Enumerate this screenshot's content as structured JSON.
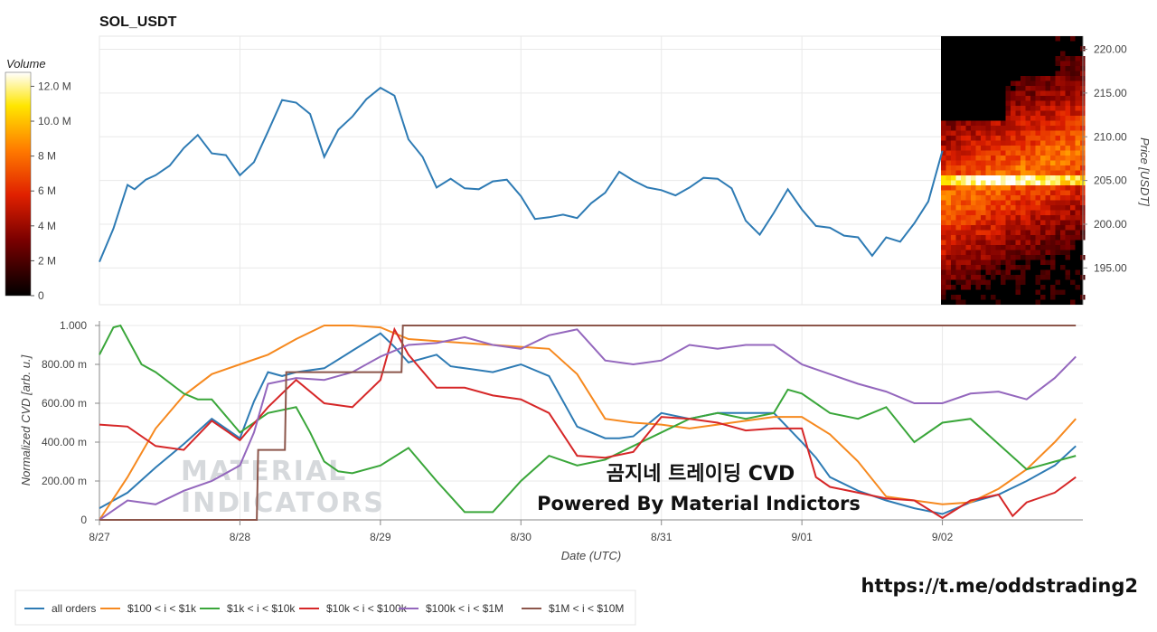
{
  "colors": {
    "all_orders": "#2e7bb4",
    "b100_1k": "#f6891f",
    "b1k_10k": "#3aa63a",
    "b10k_100k": "#d62728",
    "b100k_1m": "#9467bd",
    "b1m_10m": "#8c564b"
  },
  "overlay": {
    "line1": "곰지네 트레이딩 CVD",
    "line2": "Powered By Material Indictors",
    "url": "https://t.me/oddstrading2",
    "watermark_top": "MATERIAL",
    "watermark_bottom": "INDICATORS"
  },
  "chart_data": [
    {
      "type": "line",
      "title": "SOL_USDT",
      "ylabel": "Price [USDT]",
      "ylim": [
        190.8,
        221.5
      ],
      "yticks": [
        "195.00",
        "200.00",
        "205.00",
        "210.00",
        "215.00",
        "220.00"
      ],
      "ytick_values": [
        195,
        200,
        205,
        210,
        215,
        220
      ],
      "colorbar": {
        "title": "Volume",
        "ticks": [
          "0",
          "2 M",
          "4 M",
          "6 M",
          "8 M",
          "10.0 M",
          "12.0 M"
        ],
        "tick_values": [
          0,
          2,
          4,
          6,
          8,
          10,
          12
        ],
        "max": 12.8
      },
      "x_range_days": [
        0,
        7
      ],
      "series": [
        {
          "name": "price",
          "x": [
            0.0,
            0.1,
            0.2,
            0.25,
            0.33,
            0.4,
            0.5,
            0.6,
            0.7,
            0.8,
            0.9,
            1.0,
            1.1,
            1.2,
            1.3,
            1.4,
            1.5,
            1.6,
            1.7,
            1.8,
            1.9,
            2.0,
            2.1,
            2.2,
            2.3,
            2.4,
            2.5,
            2.6,
            2.7,
            2.8,
            2.9,
            3.0,
            3.1,
            3.2,
            3.3,
            3.4,
            3.5,
            3.6,
            3.7,
            3.8,
            3.9,
            4.0,
            4.1,
            4.2,
            4.3,
            4.4,
            4.5,
            4.6,
            4.7,
            4.8,
            4.9,
            5.0,
            5.1,
            5.2,
            5.3,
            5.4,
            5.5,
            5.6,
            5.7,
            5.8,
            5.9,
            6.0
          ],
          "values": [
            195.7,
            199.5,
            204.5,
            204.0,
            205.1,
            205.6,
            206.7,
            208.7,
            210.2,
            208.1,
            207.9,
            205.6,
            207.1,
            210.6,
            214.2,
            213.9,
            212.6,
            207.7,
            210.8,
            212.3,
            214.3,
            215.6,
            214.7,
            209.7,
            207.7,
            204.2,
            205.2,
            204.1,
            204.0,
            204.9,
            205.1,
            203.2,
            200.6,
            200.8,
            201.1,
            200.7,
            202.4,
            203.6,
            206.0,
            205.0,
            204.2,
            203.9,
            203.3,
            204.2,
            205.3,
            205.2,
            204.1,
            200.4,
            198.8,
            201.3,
            204.0,
            201.7,
            199.8,
            199.6,
            198.7,
            198.5,
            196.4,
            198.5,
            198.0,
            200.1,
            202.6,
            208.4
          ]
        }
      ]
    },
    {
      "type": "line",
      "ylabel": "Normalized CVD [arb. u.]",
      "xlabel": "Date (UTC)",
      "ylim": [
        0,
        1
      ],
      "yticks": [
        "0",
        "200.00 m",
        "400.00 m",
        "600.00 m",
        "800.00 m",
        "1.000"
      ],
      "ytick_values": [
        0,
        0.2,
        0.4,
        0.6,
        0.8,
        1.0
      ],
      "categories": [
        "8/27",
        "8/28",
        "8/29",
        "8/30",
        "8/31",
        "9/01",
        "9/02"
      ],
      "x_range_days": [
        0,
        7
      ],
      "series": [
        {
          "name": "all orders",
          "x": [
            0.0,
            0.2,
            0.4,
            0.6,
            0.8,
            1.0,
            1.1,
            1.2,
            1.3,
            1.4,
            1.6,
            1.8,
            2.0,
            2.1,
            2.2,
            2.4,
            2.5,
            2.6,
            2.8,
            3.0,
            3.2,
            3.4,
            3.6,
            3.7,
            3.8,
            4.0,
            4.2,
            4.4,
            4.6,
            4.8,
            5.0,
            5.1,
            5.2,
            5.4,
            5.6,
            5.8,
            6.0,
            6.2,
            6.4,
            6.6,
            6.8,
            6.95
          ],
          "values": [
            0.06,
            0.14,
            0.27,
            0.39,
            0.52,
            0.42,
            0.61,
            0.76,
            0.74,
            0.76,
            0.78,
            0.87,
            0.96,
            0.89,
            0.81,
            0.85,
            0.79,
            0.78,
            0.76,
            0.8,
            0.74,
            0.48,
            0.42,
            0.42,
            0.43,
            0.55,
            0.52,
            0.55,
            0.55,
            0.55,
            0.4,
            0.32,
            0.22,
            0.15,
            0.1,
            0.06,
            0.03,
            0.09,
            0.13,
            0.2,
            0.28,
            0.38
          ]
        },
        {
          "name": "$100 < i < $1k",
          "x": [
            0.0,
            0.2,
            0.4,
            0.6,
            0.8,
            1.0,
            1.2,
            1.4,
            1.6,
            1.8,
            2.0,
            2.2,
            2.4,
            2.6,
            2.8,
            3.0,
            3.2,
            3.4,
            3.6,
            3.8,
            4.0,
            4.2,
            4.4,
            4.6,
            4.8,
            5.0,
            5.2,
            5.4,
            5.6,
            5.8,
            6.0,
            6.2,
            6.4,
            6.6,
            6.8,
            6.95
          ],
          "values": [
            0.0,
            0.22,
            0.47,
            0.64,
            0.75,
            0.8,
            0.85,
            0.93,
            1.0,
            1.0,
            0.99,
            0.93,
            0.92,
            0.91,
            0.9,
            0.89,
            0.88,
            0.75,
            0.52,
            0.5,
            0.49,
            0.47,
            0.49,
            0.51,
            0.53,
            0.53,
            0.44,
            0.3,
            0.12,
            0.1,
            0.08,
            0.09,
            0.16,
            0.26,
            0.4,
            0.52
          ]
        },
        {
          "name": "$1k < i < $10k",
          "x": [
            0.0,
            0.1,
            0.15,
            0.3,
            0.4,
            0.6,
            0.7,
            0.8,
            1.0,
            1.2,
            1.4,
            1.5,
            1.6,
            1.7,
            1.8,
            2.0,
            2.2,
            2.4,
            2.5,
            2.6,
            2.8,
            3.0,
            3.2,
            3.4,
            3.6,
            3.8,
            4.0,
            4.2,
            4.4,
            4.6,
            4.8,
            4.9,
            5.0,
            5.2,
            5.4,
            5.6,
            5.8,
            6.0,
            6.2,
            6.4,
            6.6,
            6.8,
            6.95
          ],
          "values": [
            0.85,
            0.99,
            1.0,
            0.8,
            0.76,
            0.65,
            0.62,
            0.62,
            0.45,
            0.55,
            0.58,
            0.45,
            0.3,
            0.25,
            0.24,
            0.28,
            0.37,
            0.2,
            0.12,
            0.04,
            0.04,
            0.2,
            0.33,
            0.28,
            0.31,
            0.38,
            0.45,
            0.52,
            0.55,
            0.52,
            0.55,
            0.67,
            0.65,
            0.55,
            0.52,
            0.58,
            0.4,
            0.5,
            0.52,
            0.39,
            0.26,
            0.3,
            0.33
          ]
        },
        {
          "name": "$10k < i < $100k",
          "x": [
            0.0,
            0.2,
            0.4,
            0.6,
            0.8,
            1.0,
            1.2,
            1.4,
            1.6,
            1.8,
            2.0,
            2.1,
            2.2,
            2.4,
            2.6,
            2.8,
            3.0,
            3.2,
            3.4,
            3.6,
            3.8,
            4.0,
            4.2,
            4.4,
            4.6,
            4.8,
            5.0,
            5.1,
            5.2,
            5.4,
            5.6,
            5.8,
            6.0,
            6.2,
            6.4,
            6.5,
            6.6,
            6.8,
            6.95
          ],
          "values": [
            0.49,
            0.48,
            0.38,
            0.36,
            0.51,
            0.41,
            0.58,
            0.72,
            0.6,
            0.58,
            0.72,
            0.98,
            0.85,
            0.68,
            0.68,
            0.64,
            0.62,
            0.55,
            0.33,
            0.32,
            0.35,
            0.53,
            0.52,
            0.5,
            0.46,
            0.47,
            0.47,
            0.22,
            0.17,
            0.14,
            0.11,
            0.1,
            0.01,
            0.1,
            0.13,
            0.02,
            0.09,
            0.14,
            0.22
          ]
        },
        {
          "name": "$100k < i < $1M",
          "x": [
            0.0,
            0.2,
            0.4,
            0.6,
            0.8,
            1.0,
            1.1,
            1.2,
            1.4,
            1.6,
            1.8,
            2.0,
            2.2,
            2.4,
            2.6,
            2.8,
            3.0,
            3.2,
            3.4,
            3.6,
            3.8,
            4.0,
            4.2,
            4.4,
            4.6,
            4.8,
            5.0,
            5.2,
            5.4,
            5.6,
            5.8,
            6.0,
            6.2,
            6.4,
            6.6,
            6.8,
            6.95
          ],
          "values": [
            0.0,
            0.1,
            0.08,
            0.15,
            0.2,
            0.28,
            0.45,
            0.7,
            0.73,
            0.72,
            0.76,
            0.84,
            0.9,
            0.91,
            0.94,
            0.9,
            0.88,
            0.95,
            0.98,
            0.82,
            0.8,
            0.82,
            0.9,
            0.88,
            0.9,
            0.9,
            0.8,
            0.75,
            0.7,
            0.66,
            0.6,
            0.6,
            0.65,
            0.66,
            0.62,
            0.73,
            0.84
          ]
        },
        {
          "name": "$1M < i < $10M",
          "x": [
            0.0,
            1.12,
            1.13,
            1.32,
            1.33,
            2.15,
            2.16,
            6.95
          ],
          "values": [
            0.0,
            0.0,
            0.36,
            0.36,
            0.76,
            0.76,
            1.0,
            1.0
          ]
        }
      ]
    }
  ]
}
